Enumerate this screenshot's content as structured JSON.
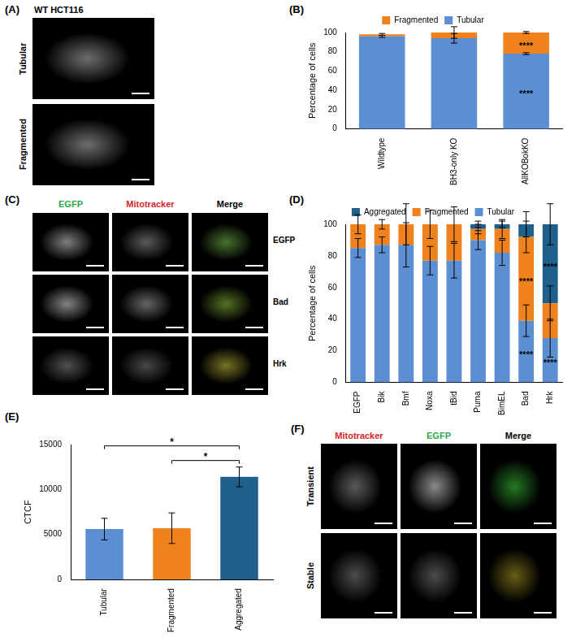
{
  "panels": {
    "A": {
      "letter": "(A)",
      "title": "WT HCT116",
      "rows": [
        "Tubular",
        "Fragmented"
      ]
    },
    "C": {
      "letter": "(C)",
      "columns": [
        {
          "text": "EGFP",
          "color": "#2ca84a"
        },
        {
          "text": "Mitotracker",
          "color": "#d8262b"
        },
        {
          "text": "Merge",
          "color": "#000000"
        }
      ],
      "rows": [
        "EGFP",
        "Bad",
        "Hrk"
      ]
    },
    "F": {
      "letter": "(F)",
      "columns": [
        {
          "text": "Mitotracker",
          "color": "#d8262b"
        },
        {
          "text": "EGFP",
          "color": "#2ca84a"
        },
        {
          "text": "Merge",
          "color": "#000000"
        }
      ],
      "rows": [
        "Transient",
        "Stable"
      ]
    }
  },
  "chart_data": [
    {
      "panel_label": "(B)",
      "type": "bar",
      "stacked": true,
      "legend": "top",
      "grid": false,
      "y_label": "Percentage of cells",
      "categories": [
        "Wildtype",
        "BH3-only KO",
        "AllKOBokKO"
      ],
      "series": [
        {
          "name": "Tubular",
          "color": "#5b8fd1",
          "values": [
            96,
            94,
            78
          ],
          "errors": [
            1,
            5,
            1
          ]
        },
        {
          "name": "Fragmented",
          "color": "#f0821e",
          "values": [
            2,
            6,
            22
          ],
          "errors": [
            1,
            6,
            1
          ]
        }
      ],
      "annotations": [
        {
          "category": "AllKOBokKO",
          "series": "Tubular",
          "text": "****"
        },
        {
          "category": "AllKOBokKO",
          "series": "Fragmented",
          "text": "****"
        }
      ],
      "ylim": [
        0,
        100
      ],
      "yticks": [
        0,
        20,
        40,
        60,
        80,
        100
      ]
    },
    {
      "panel_label": "(D)",
      "type": "bar",
      "stacked": true,
      "legend": "top",
      "grid": false,
      "y_label": "Percentage of cells",
      "categories": [
        "EGFP",
        "Bik",
        "Bmf",
        "Noxa",
        "tBid",
        "Puma",
        "BimEL",
        "Bad",
        "Hrk"
      ],
      "series": [
        {
          "name": "Tubular",
          "color": "#5b8fd1",
          "values": [
            85,
            87,
            87,
            77,
            77,
            90,
            82,
            39,
            28
          ],
          "errors": [
            6,
            5,
            14,
            9,
            11,
            6,
            8,
            10,
            12
          ]
        },
        {
          "name": "Fragmented",
          "color": "#f0821e",
          "values": [
            15,
            13,
            13,
            23,
            23,
            7,
            15,
            53,
            22
          ],
          "errors": [
            6,
            3,
            13,
            9,
            11,
            3,
            6,
            10,
            11
          ]
        },
        {
          "name": "Aggregated",
          "color": "#1f5f8b",
          "values": [
            0,
            0,
            0,
            0,
            0,
            3,
            3,
            8,
            50
          ],
          "errors": [
            null,
            null,
            null,
            null,
            null,
            2,
            2,
            8,
            13
          ]
        }
      ],
      "annotations": [
        {
          "category": "Bad",
          "series": "Tubular",
          "text": "****"
        },
        {
          "category": "Bad",
          "series": "Fragmented",
          "text": "****"
        },
        {
          "category": "Hrk",
          "series": "Tubular",
          "text": "****"
        },
        {
          "category": "Hrk",
          "series": "Aggregated",
          "text": "****"
        }
      ],
      "ylim": [
        0,
        100
      ],
      "yticks": [
        0,
        20,
        40,
        60,
        80,
        100
      ]
    },
    {
      "panel_label": "(E)",
      "type": "bar",
      "grid": false,
      "y_label": "CTCF",
      "categories": [
        "Tubular",
        "Fragmented",
        "Aggregated"
      ],
      "values": [
        5600,
        5700,
        11400
      ],
      "errors": [
        1200,
        1700,
        1100
      ],
      "colors": [
        "#5b8fd1",
        "#f0821e",
        "#1f5f8b"
      ],
      "comparisons": [
        {
          "from": "Fragmented",
          "to": "Aggregated",
          "text": "*"
        },
        {
          "from": "Tubular",
          "to": "Aggregated",
          "text": "*"
        }
      ],
      "ylim": [
        0,
        15000
      ],
      "yticks": [
        0,
        5000,
        10000,
        15000
      ]
    }
  ]
}
